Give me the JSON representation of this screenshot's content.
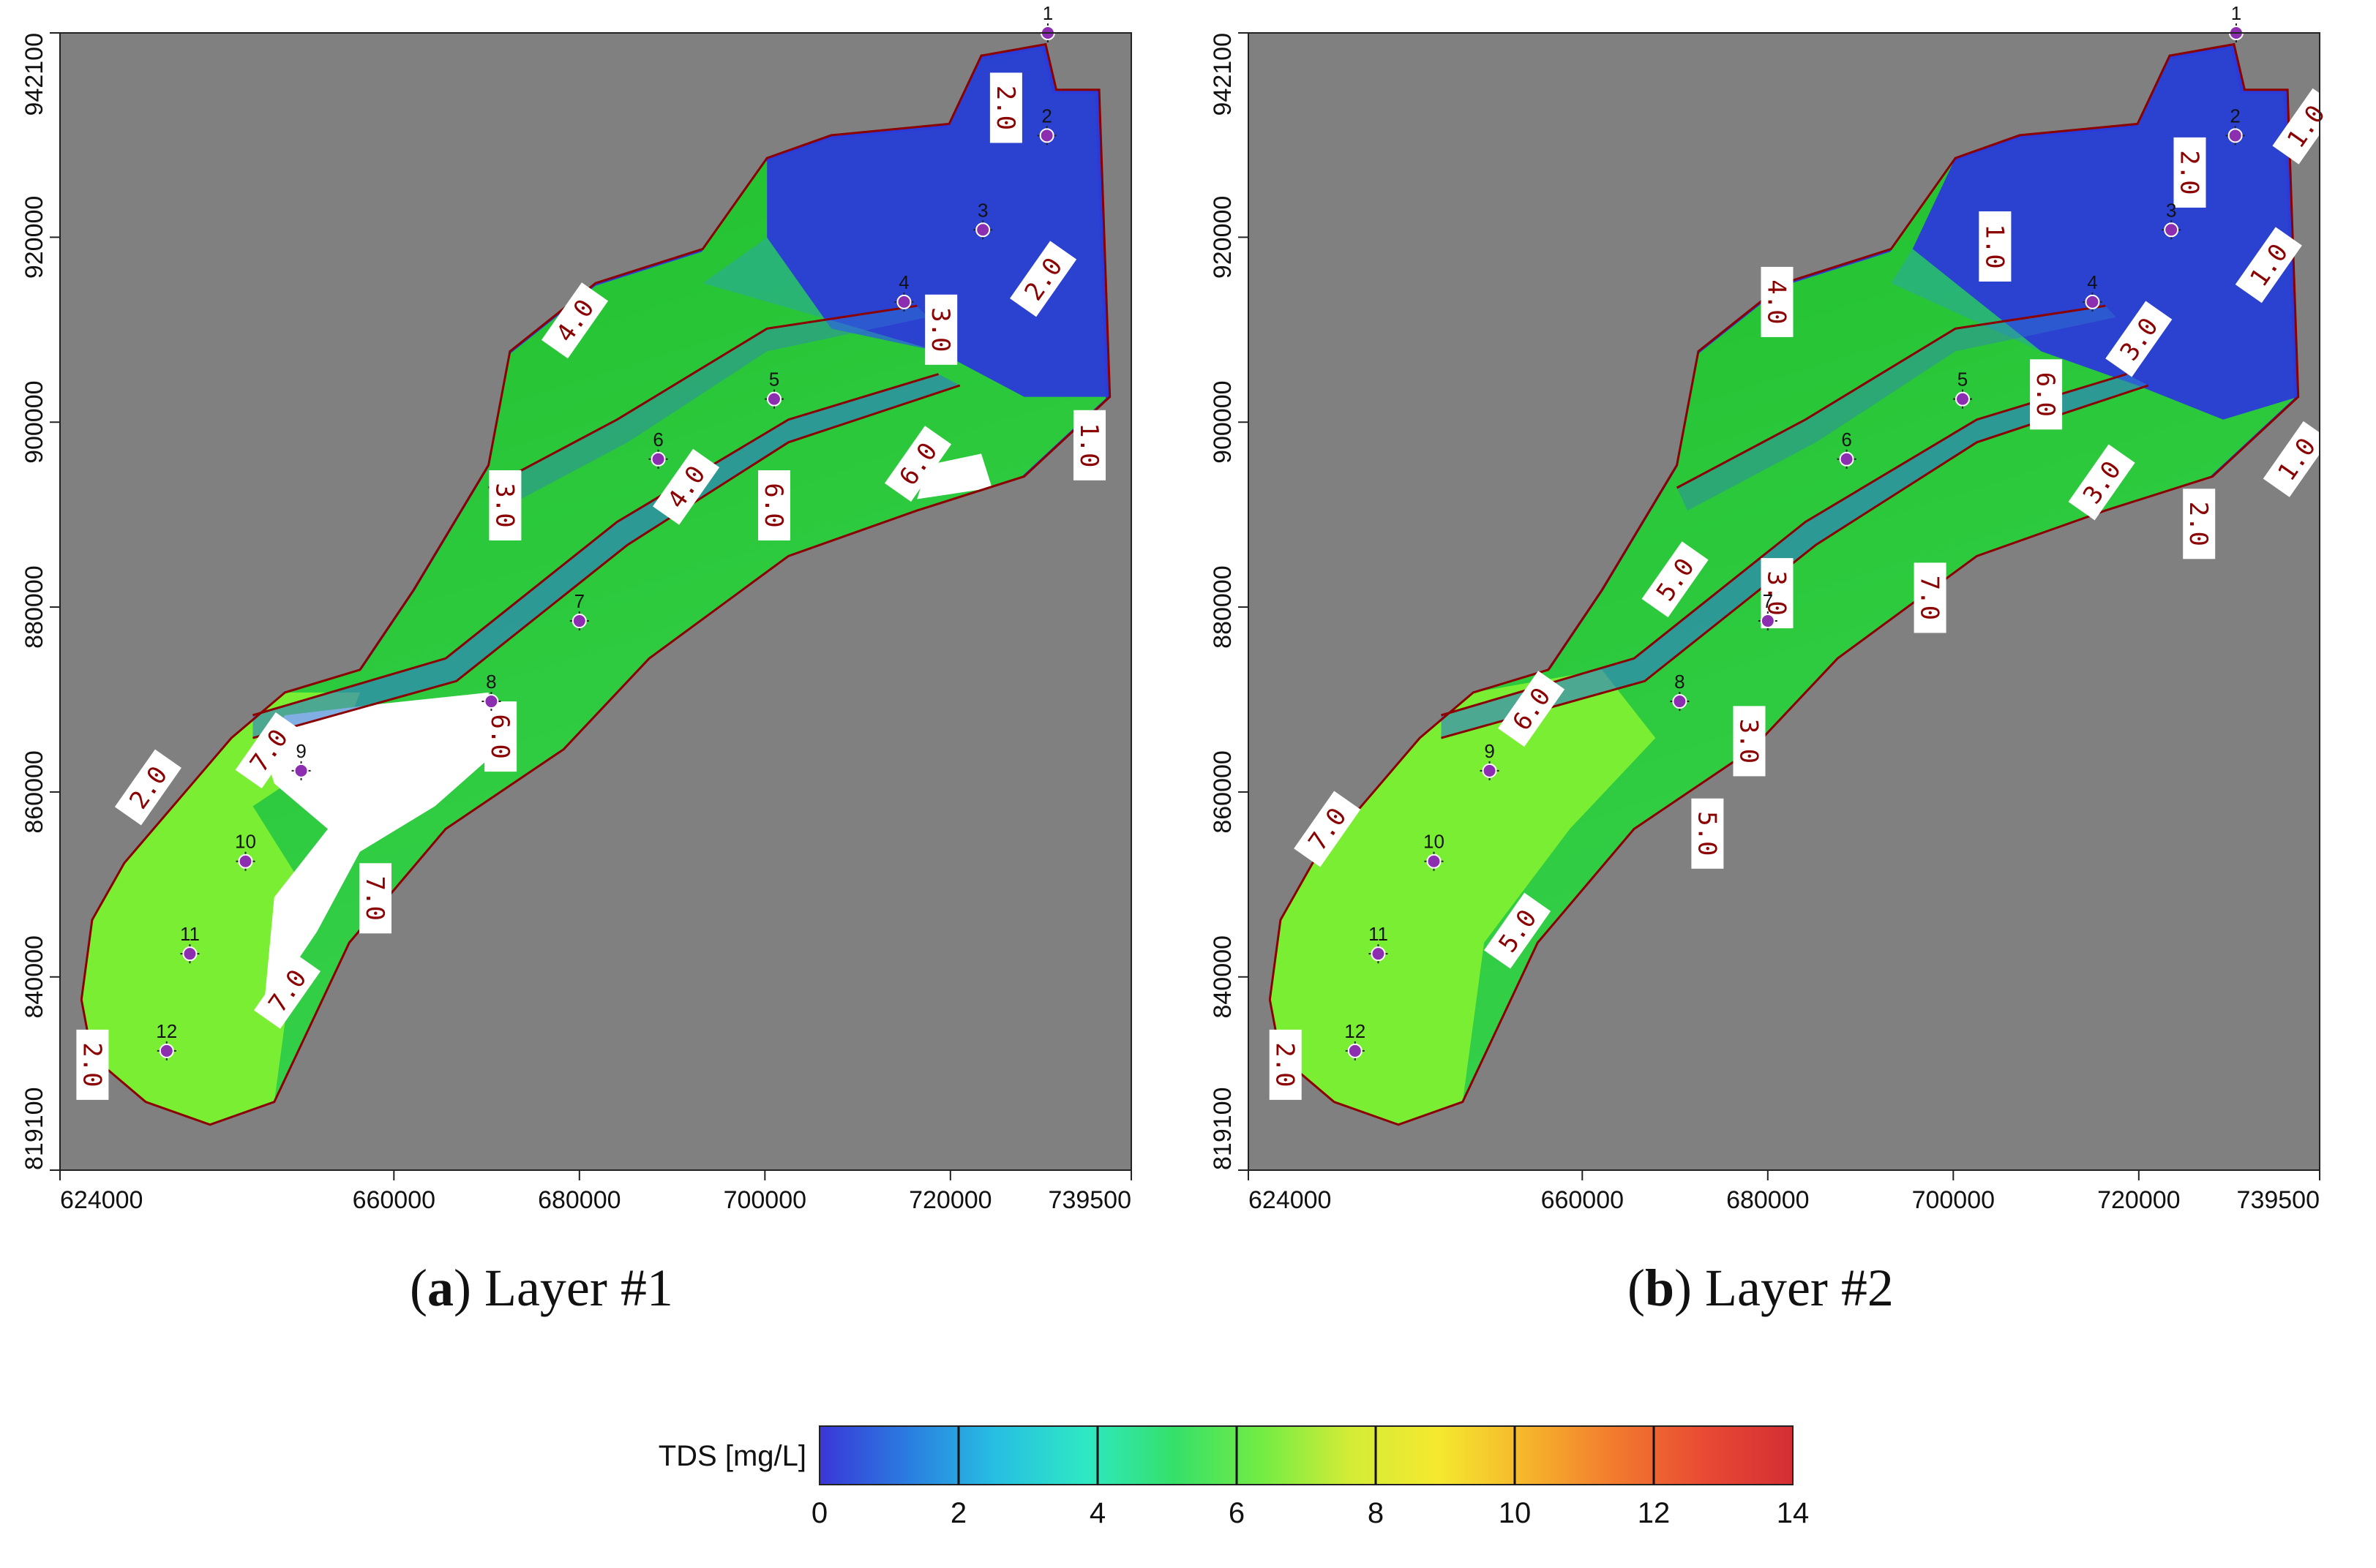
{
  "chart_data": [
    {
      "type": "heatmap",
      "panel_label": "a",
      "caption": "Layer #1",
      "x_ticks": [
        "624000",
        "660000",
        "680000",
        "700000",
        "720000",
        "739500"
      ],
      "x_tick_values": [
        624000,
        660000,
        680000,
        700000,
        720000,
        739500
      ],
      "y_ticks": [
        "819100",
        "840000",
        "860000",
        "880000",
        "900000",
        "920000",
        "942100"
      ],
      "y_tick_values": [
        819100,
        840000,
        860000,
        880000,
        900000,
        920000,
        942100
      ],
      "xlim": [
        624000,
        739500
      ],
      "ylim": [
        819100,
        942100
      ],
      "wells": [
        {
          "id": "1",
          "x": 730500,
          "y": 942100
        },
        {
          "id": "2",
          "x": 730400,
          "y": 931000
        },
        {
          "id": "3",
          "x": 723500,
          "y": 920800
        },
        {
          "id": "4",
          "x": 715000,
          "y": 913000
        },
        {
          "id": "5",
          "x": 701000,
          "y": 902500
        },
        {
          "id": "6",
          "x": 688500,
          "y": 896000
        },
        {
          "id": "7",
          "x": 680000,
          "y": 878500
        },
        {
          "id": "8",
          "x": 670500,
          "y": 869800
        },
        {
          "id": "9",
          "x": 650000,
          "y": 862300
        },
        {
          "id": "10",
          "x": 644000,
          "y": 852500
        },
        {
          "id": "11",
          "x": 638000,
          "y": 842500
        },
        {
          "id": "12",
          "x": 635500,
          "y": 832000
        }
      ],
      "contour_labels": [
        {
          "text": "2.0",
          "x": 726000,
          "y": 934000
        },
        {
          "text": "2.0",
          "x": 730000,
          "y": 915500
        },
        {
          "text": "3.0",
          "x": 719000,
          "y": 910000
        },
        {
          "text": "4.0",
          "x": 679500,
          "y": 911000
        },
        {
          "text": "1.0",
          "x": 735000,
          "y": 897500
        },
        {
          "text": "4.0",
          "x": 691500,
          "y": 893000
        },
        {
          "text": "6.0",
          "x": 701000,
          "y": 891000
        },
        {
          "text": "6.0",
          "x": 716500,
          "y": 895500
        },
        {
          "text": "3.0",
          "x": 672000,
          "y": 891000
        },
        {
          "text": "7.0",
          "x": 646500,
          "y": 864500
        },
        {
          "text": "6.0",
          "x": 671500,
          "y": 866000
        },
        {
          "text": "2.0",
          "x": 633500,
          "y": 860500
        },
        {
          "text": "7.0",
          "x": 658000,
          "y": 848500
        },
        {
          "text": "7.0",
          "x": 648500,
          "y": 838500
        },
        {
          "text": "2.0",
          "x": 627500,
          "y": 830500
        }
      ]
    },
    {
      "type": "heatmap",
      "panel_label": "b",
      "caption": "Layer #2",
      "x_ticks": [
        "624000",
        "660000",
        "680000",
        "700000",
        "720000",
        "739500"
      ],
      "x_tick_values": [
        624000,
        660000,
        680000,
        700000,
        720000,
        739500
      ],
      "y_ticks": [
        "819100",
        "840000",
        "860000",
        "880000",
        "900000",
        "920000",
        "942100"
      ],
      "y_tick_values": [
        819100,
        840000,
        860000,
        880000,
        900000,
        920000,
        942100
      ],
      "xlim": [
        624000,
        739500
      ],
      "ylim": [
        819100,
        942100
      ],
      "wells": [
        {
          "id": "1",
          "x": 730500,
          "y": 942100
        },
        {
          "id": "2",
          "x": 730400,
          "y": 931000
        },
        {
          "id": "3",
          "x": 723500,
          "y": 920800
        },
        {
          "id": "4",
          "x": 715000,
          "y": 913000
        },
        {
          "id": "5",
          "x": 701000,
          "y": 902500
        },
        {
          "id": "6",
          "x": 688500,
          "y": 896000
        },
        {
          "id": "7",
          "x": 680000,
          "y": 878500
        },
        {
          "id": "8",
          "x": 670500,
          "y": 869800
        },
        {
          "id": "9",
          "x": 650000,
          "y": 862300
        },
        {
          "id": "10",
          "x": 644000,
          "y": 852500
        },
        {
          "id": "11",
          "x": 638000,
          "y": 842500
        },
        {
          "id": "12",
          "x": 635500,
          "y": 832000
        }
      ],
      "contour_labels": [
        {
          "text": "2.0",
          "x": 725500,
          "y": 927000
        },
        {
          "text": "1.0",
          "x": 738000,
          "y": 932000
        },
        {
          "text": "1.0",
          "x": 704500,
          "y": 919000
        },
        {
          "text": "1.0",
          "x": 734000,
          "y": 917000
        },
        {
          "text": "4.0",
          "x": 681000,
          "y": 913000
        },
        {
          "text": "3.0",
          "x": 720000,
          "y": 909000
        },
        {
          "text": "6.0",
          "x": 710000,
          "y": 903000
        },
        {
          "text": "1.0",
          "x": 737000,
          "y": 896000
        },
        {
          "text": "2.0",
          "x": 726500,
          "y": 889000
        },
        {
          "text": "3.0",
          "x": 716000,
          "y": 893500
        },
        {
          "text": "3.0",
          "x": 681000,
          "y": 881500
        },
        {
          "text": "5.0",
          "x": 670000,
          "y": 883000
        },
        {
          "text": "7.0",
          "x": 697500,
          "y": 881000
        },
        {
          "text": "6.0",
          "x": 654500,
          "y": 869000
        },
        {
          "text": "3.0",
          "x": 678000,
          "y": 865500
        },
        {
          "text": "7.0",
          "x": 632500,
          "y": 856000
        },
        {
          "text": "5.0",
          "x": 673500,
          "y": 855500
        },
        {
          "text": "5.0",
          "x": 653000,
          "y": 845000
        },
        {
          "text": "2.0",
          "x": 628000,
          "y": 830500
        }
      ]
    }
  ],
  "colorbar": {
    "label": "TDS [mg/L]",
    "ticks": [
      "0",
      "2",
      "4",
      "6",
      "8",
      "10",
      "12",
      "14"
    ],
    "tick_values": [
      0,
      2,
      4,
      6,
      8,
      10,
      12,
      14
    ],
    "range": [
      0,
      14
    ],
    "colors": [
      "#3a36d8",
      "#2a7de0",
      "#27bfe2",
      "#2ee8c4",
      "#35e06a",
      "#74ec43",
      "#d4ec37",
      "#f5e92f",
      "#f6b42c",
      "#f27a2e",
      "#e84a34",
      "#d42e34"
    ]
  },
  "colors": {
    "no_data": "#808080",
    "background": "#ffffff",
    "contour": "#8b0000",
    "well": "#8b2fb0",
    "blue_zone": "#2b3bd9",
    "green_zone": "#1fbf2a",
    "light_green_zone": "#7aee33"
  }
}
